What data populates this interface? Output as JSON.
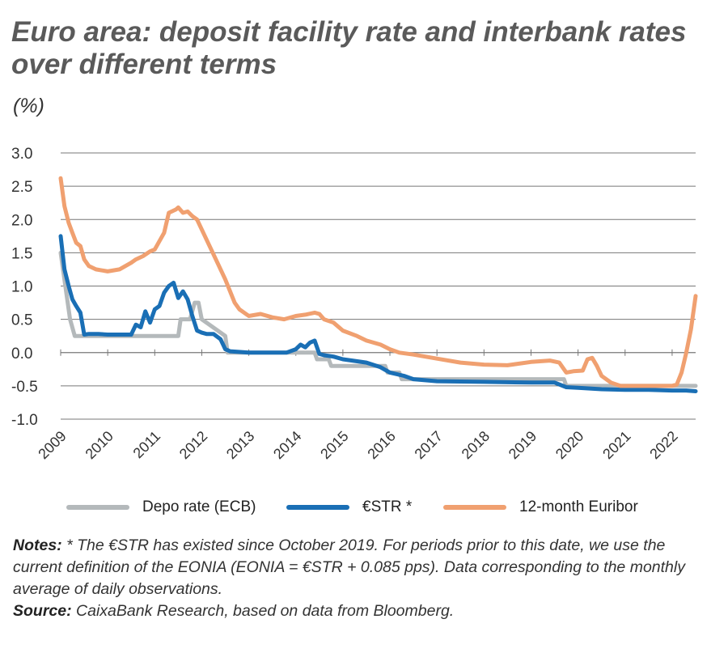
{
  "header": {
    "title": "Euro area: deposit facility rate and interbank rates over different terms",
    "unit": "(%)"
  },
  "legend": {
    "items": [
      {
        "label": "Depo rate (ECB)"
      },
      {
        "label": "€STR *"
      },
      {
        "label": "12-month Euribor"
      }
    ]
  },
  "notes": {
    "notes_label": "Notes:",
    "notes_text": "* The €STR has existed since October 2019. For periods prior to this date, we use the current definition of the EONIA (EONIA = €STR + 0.085 pps). Data corresponding to the monthly average of daily observations.",
    "source_label": "Source:",
    "source_text": "CaixaBank Research, based on data from Bloomberg."
  },
  "colors": {
    "depo": "#b4b9bb",
    "estr": "#1a6fb5",
    "euribor": "#f0a070",
    "grid": "#777777"
  },
  "chart_data": {
    "type": "line",
    "title": "Euro area: deposit facility rate and interbank rates over different terms",
    "ylabel": "(%)",
    "xlabel": "",
    "ylim": [
      -1.0,
      3.0
    ],
    "yticks": [
      "3.0",
      "2.5",
      "2.0",
      "1.5",
      "1.0",
      "0.5",
      "0.0",
      "-0.5",
      "-1.0"
    ],
    "ytick_values": [
      3.0,
      2.5,
      2.0,
      1.5,
      1.0,
      0.5,
      0.0,
      -0.5,
      -1.0
    ],
    "xlim": [
      2009.0,
      2022.5
    ],
    "xticks": [
      "2009",
      "2010",
      "2011",
      "2012",
      "2013",
      "2014",
      "2015",
      "2016",
      "2017",
      "2018",
      "2019",
      "2020",
      "2021",
      "2022"
    ],
    "series": [
      {
        "name": "Depo rate (ECB)",
        "x": [
          2009.0,
          2009.1,
          2009.2,
          2009.3,
          2009.35,
          2010.0,
          2011.0,
          2011.5,
          2011.55,
          2011.75,
          2011.85,
          2011.93,
          2012.0,
          2012.5,
          2012.55,
          2014.4,
          2014.45,
          2014.7,
          2014.75,
          2015.9,
          2015.95,
          2016.2,
          2016.25,
          2019.7,
          2019.75,
          2022.5
        ],
        "values": [
          1.5,
          1.0,
          0.5,
          0.25,
          0.25,
          0.25,
          0.25,
          0.25,
          0.5,
          0.5,
          0.75,
          0.75,
          0.5,
          0.25,
          0.0,
          0.0,
          -0.1,
          -0.1,
          -0.2,
          -0.2,
          -0.3,
          -0.3,
          -0.4,
          -0.4,
          -0.5,
          -0.5
        ]
      },
      {
        "name": "€STR *",
        "x": [
          2009.0,
          2009.08,
          2009.17,
          2009.25,
          2009.33,
          2009.42,
          2009.5,
          2009.6,
          2009.8,
          2010.0,
          2010.25,
          2010.5,
          2010.6,
          2010.7,
          2010.8,
          2010.9,
          2011.0,
          2011.1,
          2011.2,
          2011.3,
          2011.4,
          2011.5,
          2011.6,
          2011.7,
          2011.8,
          2011.9,
          2012.0,
          2012.1,
          2012.25,
          2012.4,
          2012.5,
          2012.6,
          2013.0,
          2013.5,
          2013.8,
          2014.0,
          2014.1,
          2014.2,
          2014.3,
          2014.4,
          2014.5,
          2014.6,
          2014.8,
          2015.0,
          2015.2,
          2015.5,
          2015.8,
          2016.0,
          2016.3,
          2016.5,
          2017.0,
          2018.0,
          2019.0,
          2019.5,
          2019.75,
          2020.0,
          2020.5,
          2021.0,
          2021.5,
          2022.0,
          2022.3,
          2022.5
        ],
        "values": [
          1.75,
          1.25,
          1.0,
          0.8,
          0.7,
          0.6,
          0.27,
          0.28,
          0.28,
          0.27,
          0.27,
          0.27,
          0.42,
          0.38,
          0.62,
          0.45,
          0.65,
          0.7,
          0.9,
          1.0,
          1.05,
          0.82,
          0.92,
          0.8,
          0.55,
          0.33,
          0.3,
          0.28,
          0.28,
          0.2,
          0.05,
          0.02,
          0.0,
          0.0,
          0.0,
          0.05,
          0.12,
          0.08,
          0.15,
          0.18,
          -0.02,
          -0.04,
          -0.06,
          -0.1,
          -0.12,
          -0.15,
          -0.22,
          -0.3,
          -0.35,
          -0.4,
          -0.43,
          -0.44,
          -0.45,
          -0.45,
          -0.52,
          -0.53,
          -0.55,
          -0.56,
          -0.56,
          -0.57,
          -0.57,
          -0.58
        ]
      },
      {
        "name": "12-month Euribor",
        "x": [
          2009.0,
          2009.08,
          2009.17,
          2009.25,
          2009.33,
          2009.42,
          2009.5,
          2009.6,
          2009.75,
          2010.0,
          2010.25,
          2010.5,
          2010.6,
          2010.75,
          2010.9,
          2011.0,
          2011.2,
          2011.3,
          2011.45,
          2011.5,
          2011.6,
          2011.7,
          2011.8,
          2011.9,
          2012.0,
          2012.2,
          2012.4,
          2012.5,
          2012.7,
          2012.8,
          2013.0,
          2013.25,
          2013.5,
          2013.75,
          2014.0,
          2014.2,
          2014.4,
          2014.5,
          2014.6,
          2014.8,
          2015.0,
          2015.3,
          2015.5,
          2015.8,
          2016.0,
          2016.2,
          2016.5,
          2017.0,
          2017.5,
          2018.0,
          2018.5,
          2019.0,
          2019.4,
          2019.6,
          2019.75,
          2019.9,
          2020.1,
          2020.2,
          2020.3,
          2020.4,
          2020.5,
          2020.7,
          2020.9,
          2021.0,
          2021.5,
          2022.0,
          2022.1,
          2022.2,
          2022.3,
          2022.4,
          2022.5
        ],
        "values": [
          2.62,
          2.2,
          1.95,
          1.8,
          1.65,
          1.6,
          1.4,
          1.3,
          1.25,
          1.22,
          1.25,
          1.35,
          1.4,
          1.45,
          1.52,
          1.55,
          1.8,
          2.1,
          2.15,
          2.18,
          2.1,
          2.12,
          2.05,
          2.0,
          1.85,
          1.55,
          1.25,
          1.1,
          0.75,
          0.65,
          0.55,
          0.58,
          0.53,
          0.5,
          0.55,
          0.57,
          0.6,
          0.58,
          0.5,
          0.45,
          0.33,
          0.25,
          0.18,
          0.12,
          0.05,
          0.0,
          -0.03,
          -0.09,
          -0.15,
          -0.18,
          -0.19,
          -0.14,
          -0.12,
          -0.15,
          -0.3,
          -0.28,
          -0.27,
          -0.1,
          -0.08,
          -0.2,
          -0.35,
          -0.45,
          -0.5,
          -0.5,
          -0.5,
          -0.5,
          -0.48,
          -0.3,
          0.0,
          0.35,
          0.85
        ]
      }
    ]
  }
}
